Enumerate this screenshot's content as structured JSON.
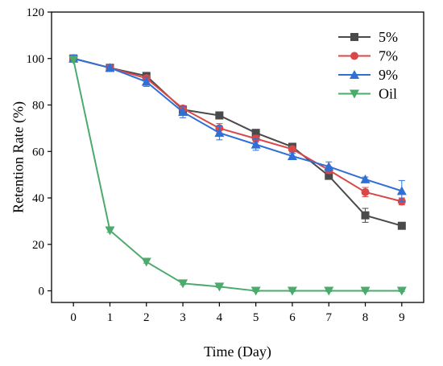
{
  "chart_data": {
    "type": "line",
    "xlabel": "Time (Day)",
    "ylabel": "Retention Rate (%)",
    "xlim": [
      -0.6,
      9.6
    ],
    "ylim": [
      -5,
      120
    ],
    "xticks": [
      0,
      1,
      2,
      3,
      4,
      5,
      6,
      7,
      8,
      9
    ],
    "yticks": [
      0,
      20,
      40,
      60,
      80,
      100,
      120
    ],
    "legend_position": "top-right",
    "x": [
      0,
      1,
      2,
      3,
      4,
      5,
      6,
      7,
      8,
      9
    ],
    "series": [
      {
        "name": "5%",
        "color": "#4a4a4a",
        "marker": "square",
        "values": [
          100,
          96,
          92.5,
          78,
          75.5,
          68,
          62,
          49.5,
          32.5,
          28
        ],
        "errors": [
          1.5,
          1.5,
          1.2,
          1.5,
          1.5,
          0.8,
          0.8,
          1.5,
          3,
          0.6
        ]
      },
      {
        "name": "7%",
        "color": "#d94848",
        "marker": "circle",
        "values": [
          100,
          96,
          91.5,
          78.5,
          70,
          65.5,
          61,
          52,
          42.5,
          38.5
        ],
        "errors": [
          1.2,
          1.2,
          1.2,
          1.2,
          2,
          1.5,
          1.2,
          1.5,
          2,
          1.5
        ]
      },
      {
        "name": "9%",
        "color": "#2f6fd6",
        "marker": "triangle-up",
        "values": [
          100,
          96,
          90,
          77,
          68,
          63,
          58,
          53.5,
          48,
          43
        ],
        "errors": [
          1.5,
          1.5,
          2,
          2.5,
          3,
          2.5,
          1.2,
          2,
          1,
          4.5
        ]
      },
      {
        "name": "Oil",
        "color": "#4caa6c",
        "marker": "triangle-down",
        "values": [
          99.5,
          26,
          12.5,
          3.2,
          1.8,
          0,
          0,
          0,
          0,
          0
        ],
        "errors": [
          1,
          0.8,
          0.6,
          0.5,
          0.4,
          0.3,
          0.3,
          0.3,
          0.3,
          0.3
        ]
      }
    ]
  }
}
